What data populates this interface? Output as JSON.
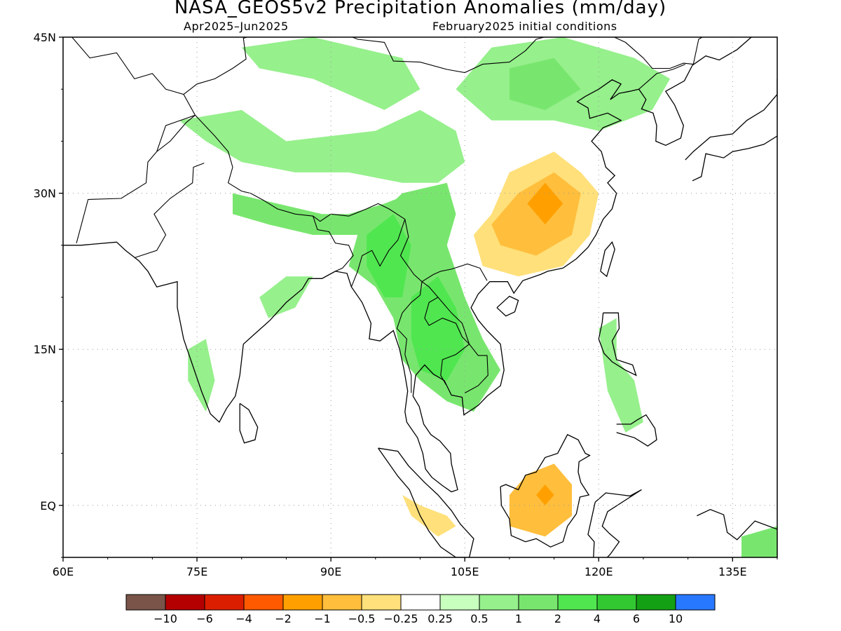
{
  "title": "NASA_GEOS5v2 Precipitation Anomalies (mm/day)",
  "subtitle_left": "Apr2025–Jun2025",
  "subtitle_right": "February2025 initial conditions",
  "lat_ticks": [
    {
      "lat": 45,
      "label": "45N"
    },
    {
      "lat": 30,
      "label": "30N"
    },
    {
      "lat": 15,
      "label": "15N"
    },
    {
      "lat": 0,
      "label": "EQ"
    }
  ],
  "lon_ticks": [
    {
      "lon": 60,
      "label": "60E"
    },
    {
      "lon": 75,
      "label": "75E"
    },
    {
      "lon": 90,
      "label": "90E"
    },
    {
      "lon": 105,
      "label": "105E"
    },
    {
      "lon": 120,
      "label": "120E"
    },
    {
      "lon": 135,
      "label": "135E"
    }
  ],
  "map_extent": {
    "lon_min": 60,
    "lon_max": 140,
    "lat_min": -5,
    "lat_max": 45
  },
  "colorbar": {
    "colors": [
      "#7a5449",
      "#b40000",
      "#dc1e00",
      "#ff5a00",
      "#ffa000",
      "#ffbe3c",
      "#ffe07a",
      "#ffffff",
      "#c8ffbe",
      "#96f08c",
      "#78e66e",
      "#50e650",
      "#32c832",
      "#14a014",
      "#2878ff"
    ],
    "labels": [
      "-10",
      "-6",
      "-4",
      "-2",
      "-1",
      "-0.5",
      "-0.25",
      "0.25",
      "0.5",
      "1",
      "2",
      "4",
      "6",
      "10"
    ]
  },
  "anomaly_regions": [
    {
      "name": "tibet-wet-band",
      "level": 0.5,
      "points": [
        [
          73,
          37
        ],
        [
          80,
          38
        ],
        [
          85,
          35
        ],
        [
          95,
          36
        ],
        [
          100,
          38
        ],
        [
          104,
          36
        ],
        [
          105,
          33
        ],
        [
          102,
          31
        ],
        [
          98,
          31
        ],
        [
          92,
          32
        ],
        [
          86,
          32
        ],
        [
          80,
          33
        ],
        [
          76,
          35
        ]
      ]
    },
    {
      "name": "mongolia-wet",
      "level": 0.5,
      "points": [
        [
          80,
          44
        ],
        [
          88,
          45
        ],
        [
          98,
          43
        ],
        [
          100,
          40
        ],
        [
          96,
          38
        ],
        [
          88,
          41
        ],
        [
          82,
          42
        ]
      ]
    },
    {
      "name": "north-china-wet",
      "level": 0.5,
      "points": [
        [
          104,
          40
        ],
        [
          108,
          44
        ],
        [
          116,
          45
        ],
        [
          124,
          43
        ],
        [
          128,
          41
        ],
        [
          126,
          38
        ],
        [
          120,
          36
        ],
        [
          115,
          37
        ],
        [
          108,
          37
        ]
      ]
    },
    {
      "name": "north-china-core",
      "level": 1,
      "points": [
        [
          110,
          42
        ],
        [
          115,
          43
        ],
        [
          118,
          40
        ],
        [
          114,
          38
        ],
        [
          110,
          39
        ]
      ]
    },
    {
      "name": "himalaya-wet",
      "level": 1,
      "points": [
        [
          79,
          30
        ],
        [
          84,
          29
        ],
        [
          89,
          28
        ],
        [
          92,
          28
        ],
        [
          96,
          29
        ],
        [
          99,
          30
        ],
        [
          101,
          29
        ],
        [
          98,
          27
        ],
        [
          93,
          26
        ],
        [
          88,
          26
        ],
        [
          83,
          27
        ],
        [
          79,
          28
        ]
      ]
    },
    {
      "name": "se-asia-wet",
      "level": 1,
      "points": [
        [
          93,
          26
        ],
        [
          98,
          30
        ],
        [
          103,
          31
        ],
        [
          104,
          28
        ],
        [
          103,
          25
        ],
        [
          105,
          20
        ],
        [
          107,
          16
        ],
        [
          109,
          13
        ],
        [
          106,
          9
        ],
        [
          103,
          10
        ],
        [
          100,
          12
        ],
        [
          98,
          14
        ],
        [
          97,
          18
        ],
        [
          95,
          21
        ],
        [
          92,
          23
        ]
      ]
    },
    {
      "name": "myanmar-core",
      "level": 2,
      "points": [
        [
          94,
          26
        ],
        [
          97,
          28
        ],
        [
          99,
          25
        ],
        [
          98,
          20
        ],
        [
          96,
          20
        ],
        [
          94,
          23
        ]
      ]
    },
    {
      "name": "indochina-core",
      "level": 2,
      "points": [
        [
          99,
          20
        ],
        [
          102,
          22
        ],
        [
          104,
          19
        ],
        [
          105,
          15
        ],
        [
          103,
          12
        ],
        [
          100,
          13
        ],
        [
          99,
          16
        ]
      ]
    },
    {
      "name": "china-dry",
      "level": -0.5,
      "points": [
        [
          106,
          26
        ],
        [
          108,
          28
        ],
        [
          110,
          32
        ],
        [
          115,
          34
        ],
        [
          118,
          32
        ],
        [
          120,
          30
        ],
        [
          119,
          26
        ],
        [
          116,
          23
        ],
        [
          111,
          22
        ],
        [
          107,
          23
        ]
      ]
    },
    {
      "name": "china-dry-core",
      "level": -1,
      "points": [
        [
          108,
          27
        ],
        [
          111,
          30
        ],
        [
          115,
          32
        ],
        [
          118,
          30
        ],
        [
          117,
          26
        ],
        [
          113,
          24
        ],
        [
          109,
          25
        ]
      ]
    },
    {
      "name": "china-dry-inner",
      "level": -2,
      "points": [
        [
          112,
          29
        ],
        [
          114,
          31
        ],
        [
          116,
          29
        ],
        [
          114,
          27
        ]
      ]
    },
    {
      "name": "borneo-dry",
      "level": -1,
      "points": [
        [
          110,
          1
        ],
        [
          112,
          3
        ],
        [
          115,
          4
        ],
        [
          117,
          2
        ],
        [
          117,
          -1
        ],
        [
          114,
          -3
        ],
        [
          110,
          -2
        ]
      ]
    },
    {
      "name": "borneo-dry-core",
      "level": -2,
      "points": [
        [
          113,
          1
        ],
        [
          114,
          2
        ],
        [
          115,
          1
        ],
        [
          114,
          0
        ]
      ]
    },
    {
      "name": "sumatra-dry",
      "level": -0.5,
      "points": [
        [
          98,
          1
        ],
        [
          100,
          0
        ],
        [
          103,
          -1
        ],
        [
          104,
          -2
        ],
        [
          102,
          -3
        ],
        [
          99,
          -1
        ]
      ]
    },
    {
      "name": "india-west-wet",
      "level": 0.5,
      "points": [
        [
          74,
          15
        ],
        [
          76,
          16
        ],
        [
          77,
          12
        ],
        [
          76,
          9
        ],
        [
          74,
          12
        ]
      ]
    },
    {
      "name": "india-east-wet",
      "level": 0.5,
      "points": [
        [
          82,
          20
        ],
        [
          85,
          22
        ],
        [
          88,
          22
        ],
        [
          86,
          19
        ],
        [
          83,
          18
        ]
      ]
    },
    {
      "name": "new-guinea-wet",
      "level": 1,
      "points": [
        [
          136,
          -3
        ],
        [
          140,
          -2
        ],
        [
          140,
          -5
        ],
        [
          136,
          -5
        ]
      ]
    },
    {
      "name": "philippines-wet",
      "level": 0.5,
      "points": [
        [
          120,
          17
        ],
        [
          122,
          18
        ],
        [
          122,
          14
        ],
        [
          124,
          12
        ],
        [
          125,
          8
        ],
        [
          123,
          7
        ],
        [
          121,
          11
        ]
      ]
    }
  ]
}
